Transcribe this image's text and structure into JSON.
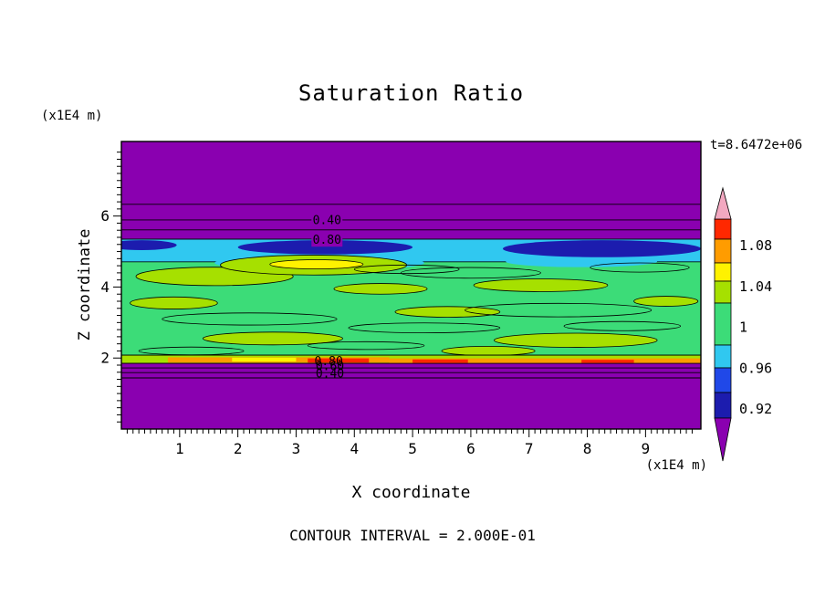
{
  "chart_data": {
    "type": "contour",
    "title": "Saturation Ratio",
    "xlabel": "X coordinate",
    "ylabel": "Z coordinate",
    "x_axis_unit": "(x1E4 m)",
    "y_axis_unit": "(x1E4 m)",
    "time_annotation": "t=8.6472e+06",
    "footer": "CONTOUR INTERVAL = 2.000E-01",
    "contour_interval": 0.2,
    "xlim": [
      0,
      9.95
    ],
    "ylim": [
      0,
      8.1
    ],
    "x_ticks": [
      1,
      2,
      3,
      4,
      5,
      6,
      7,
      8,
      9
    ],
    "y_ticks": [
      2,
      4,
      6
    ],
    "x_minor_step": 0.1,
    "y_minor_step": 0.2,
    "palette": {
      "purple": "#8A00B0",
      "navy": "#1C1CAE",
      "blue": "#2048E8",
      "cyan": "#30C8F0",
      "green": "#3CDC78",
      "chartreuse": "#A6E000",
      "yellow": "#FFF200",
      "orange": "#FF9C00",
      "red": "#FF2800",
      "pink": "#F2A8C0"
    },
    "colorbar": {
      "over": "pink",
      "under": "purple",
      "segments": [
        "red",
        "orange",
        "yellow",
        "chartreuse",
        "green",
        "cyan",
        "blue",
        "navy"
      ],
      "segment_heights": [
        22,
        26,
        20,
        24,
        46,
        25,
        27,
        28
      ],
      "labels": [
        "1.08",
        "1.04",
        "1",
        "0.96",
        "0.92"
      ]
    },
    "contour_lines": [
      6.33,
      5.89,
      5.61,
      5.35,
      2.08,
      1.85,
      1.72,
      1.59,
      1.44
    ],
    "contour_labels": [
      {
        "text": "0.40",
        "x": 3.53,
        "z": 5.89,
        "bg": "purple"
      },
      {
        "text": "0.80",
        "x": 3.53,
        "z": 5.33,
        "bg": "purple"
      },
      {
        "text": "0.80",
        "x": 3.56,
        "z": 1.92
      },
      {
        "text": "0.60",
        "x": 3.58,
        "z": 1.77
      },
      {
        "text": "0.40",
        "x": 3.58,
        "z": 1.57
      }
    ],
    "field": [
      {
        "kind": "rect",
        "color": "green",
        "x": [
          0,
          9.95
        ],
        "z": [
          1.85,
          5.35
        ],
        "stroke": true
      },
      {
        "kind": "rect",
        "color": "cyan",
        "x": [
          0,
          9.95
        ],
        "z": [
          4.71,
          5.35
        ],
        "stroke": true
      },
      {
        "kind": "ellipse",
        "color": "cyan",
        "cx": 3.4,
        "cz": 4.68,
        "rx": 1.8,
        "rz": 0.22,
        "stroke": false
      },
      {
        "kind": "ellipse",
        "color": "cyan",
        "cx": 7.9,
        "cz": 4.72,
        "rx": 1.3,
        "rz": 0.16,
        "stroke": false
      },
      {
        "kind": "ellipse",
        "color": "navy",
        "cx": 3.5,
        "cz": 5.12,
        "rx": 1.5,
        "rz": 0.2,
        "stroke": false
      },
      {
        "kind": "ellipse",
        "color": "navy",
        "cx": 8.25,
        "cz": 5.08,
        "rx": 1.7,
        "rz": 0.24,
        "stroke": false
      },
      {
        "kind": "ellipse",
        "color": "navy",
        "cx": 0.35,
        "cz": 5.18,
        "rx": 0.6,
        "rz": 0.14,
        "stroke": false
      },
      {
        "kind": "ellipse",
        "color": "chartreuse",
        "cx": 1.6,
        "cz": 4.3,
        "rx": 1.35,
        "rz": 0.26,
        "stroke": true
      },
      {
        "kind": "ellipse",
        "color": "chartreuse",
        "cx": 3.3,
        "cz": 4.62,
        "rx": 1.6,
        "rz": 0.28,
        "stroke": true
      },
      {
        "kind": "ellipse",
        "color": "yellow",
        "cx": 3.35,
        "cz": 4.64,
        "rx": 0.8,
        "rz": 0.13,
        "stroke": true
      },
      {
        "kind": "ellipse",
        "color": "chartreuse",
        "cx": 0.9,
        "cz": 3.55,
        "rx": 0.75,
        "rz": 0.17,
        "stroke": true
      },
      {
        "kind": "ellipse",
        "color": "chartreuse",
        "cx": 4.45,
        "cz": 3.95,
        "rx": 0.8,
        "rz": 0.15,
        "stroke": true
      },
      {
        "kind": "ellipse",
        "color": "chartreuse",
        "cx": 7.2,
        "cz": 4.05,
        "rx": 1.15,
        "rz": 0.18,
        "stroke": true
      },
      {
        "kind": "ellipse",
        "color": "chartreuse",
        "cx": 5.6,
        "cz": 3.3,
        "rx": 0.9,
        "rz": 0.15,
        "stroke": true
      },
      {
        "kind": "ellipse",
        "color": "chartreuse",
        "cx": 2.6,
        "cz": 2.55,
        "rx": 1.2,
        "rz": 0.18,
        "stroke": true
      },
      {
        "kind": "ellipse",
        "color": "chartreuse",
        "cx": 7.8,
        "cz": 2.5,
        "rx": 1.4,
        "rz": 0.2,
        "stroke": true
      },
      {
        "kind": "ellipse",
        "color": "chartreuse",
        "cx": 9.35,
        "cz": 3.6,
        "rx": 0.55,
        "rz": 0.14,
        "stroke": true
      },
      {
        "kind": "ellipse",
        "color": "chartreuse",
        "cx": 6.3,
        "cz": 2.2,
        "rx": 0.8,
        "rz": 0.13,
        "stroke": true
      },
      {
        "kind": "ellipse",
        "color": "none",
        "cx": 2.2,
        "cz": 3.1,
        "rx": 1.5,
        "rz": 0.17,
        "stroke": true
      },
      {
        "kind": "ellipse",
        "color": "none",
        "cx": 5.2,
        "cz": 2.85,
        "rx": 1.3,
        "rz": 0.14,
        "stroke": true
      },
      {
        "kind": "ellipse",
        "color": "none",
        "cx": 7.5,
        "cz": 3.35,
        "rx": 1.6,
        "rz": 0.19,
        "stroke": true
      },
      {
        "kind": "ellipse",
        "color": "none",
        "cx": 4.2,
        "cz": 2.35,
        "rx": 1.0,
        "rz": 0.11,
        "stroke": true
      },
      {
        "kind": "ellipse",
        "color": "none",
        "cx": 8.6,
        "cz": 2.9,
        "rx": 1.0,
        "rz": 0.13,
        "stroke": true
      },
      {
        "kind": "ellipse",
        "color": "none",
        "cx": 6.0,
        "cz": 4.4,
        "rx": 1.2,
        "rz": 0.15,
        "stroke": true
      },
      {
        "kind": "ellipse",
        "color": "none",
        "cx": 8.9,
        "cz": 4.55,
        "rx": 0.85,
        "rz": 0.13,
        "stroke": true
      },
      {
        "kind": "ellipse",
        "color": "none",
        "cx": 1.2,
        "cz": 2.2,
        "rx": 0.9,
        "rz": 0.11,
        "stroke": true
      },
      {
        "kind": "ellipse",
        "color": "none",
        "cx": 4.9,
        "cz": 4.5,
        "rx": 0.9,
        "rz": 0.12,
        "stroke": true
      },
      {
        "kind": "rect",
        "color": "chartreuse",
        "x": [
          0,
          9.95
        ],
        "z": [
          1.85,
          2.08
        ],
        "stroke": true
      },
      {
        "kind": "rect",
        "color": "orange",
        "x": [
          0.8,
          4.6
        ],
        "z": [
          1.87,
          2.02
        ],
        "stroke": false
      },
      {
        "kind": "rect",
        "color": "yellow",
        "x": [
          1.9,
          3.0
        ],
        "z": [
          1.9,
          2.01
        ],
        "stroke": false
      },
      {
        "kind": "rect",
        "color": "red",
        "x": [
          3.2,
          4.25
        ],
        "z": [
          1.87,
          1.99
        ],
        "stroke": false
      },
      {
        "kind": "rect",
        "color": "orange",
        "x": [
          4.6,
          9.95
        ],
        "z": [
          1.85,
          1.99
        ],
        "stroke": false
      },
      {
        "kind": "rect",
        "color": "red",
        "x": [
          5.0,
          5.95
        ],
        "z": [
          1.86,
          1.96
        ],
        "stroke": false
      },
      {
        "kind": "rect",
        "color": "red",
        "x": [
          7.9,
          8.8
        ],
        "z": [
          1.86,
          1.95
        ],
        "stroke": false
      }
    ]
  }
}
